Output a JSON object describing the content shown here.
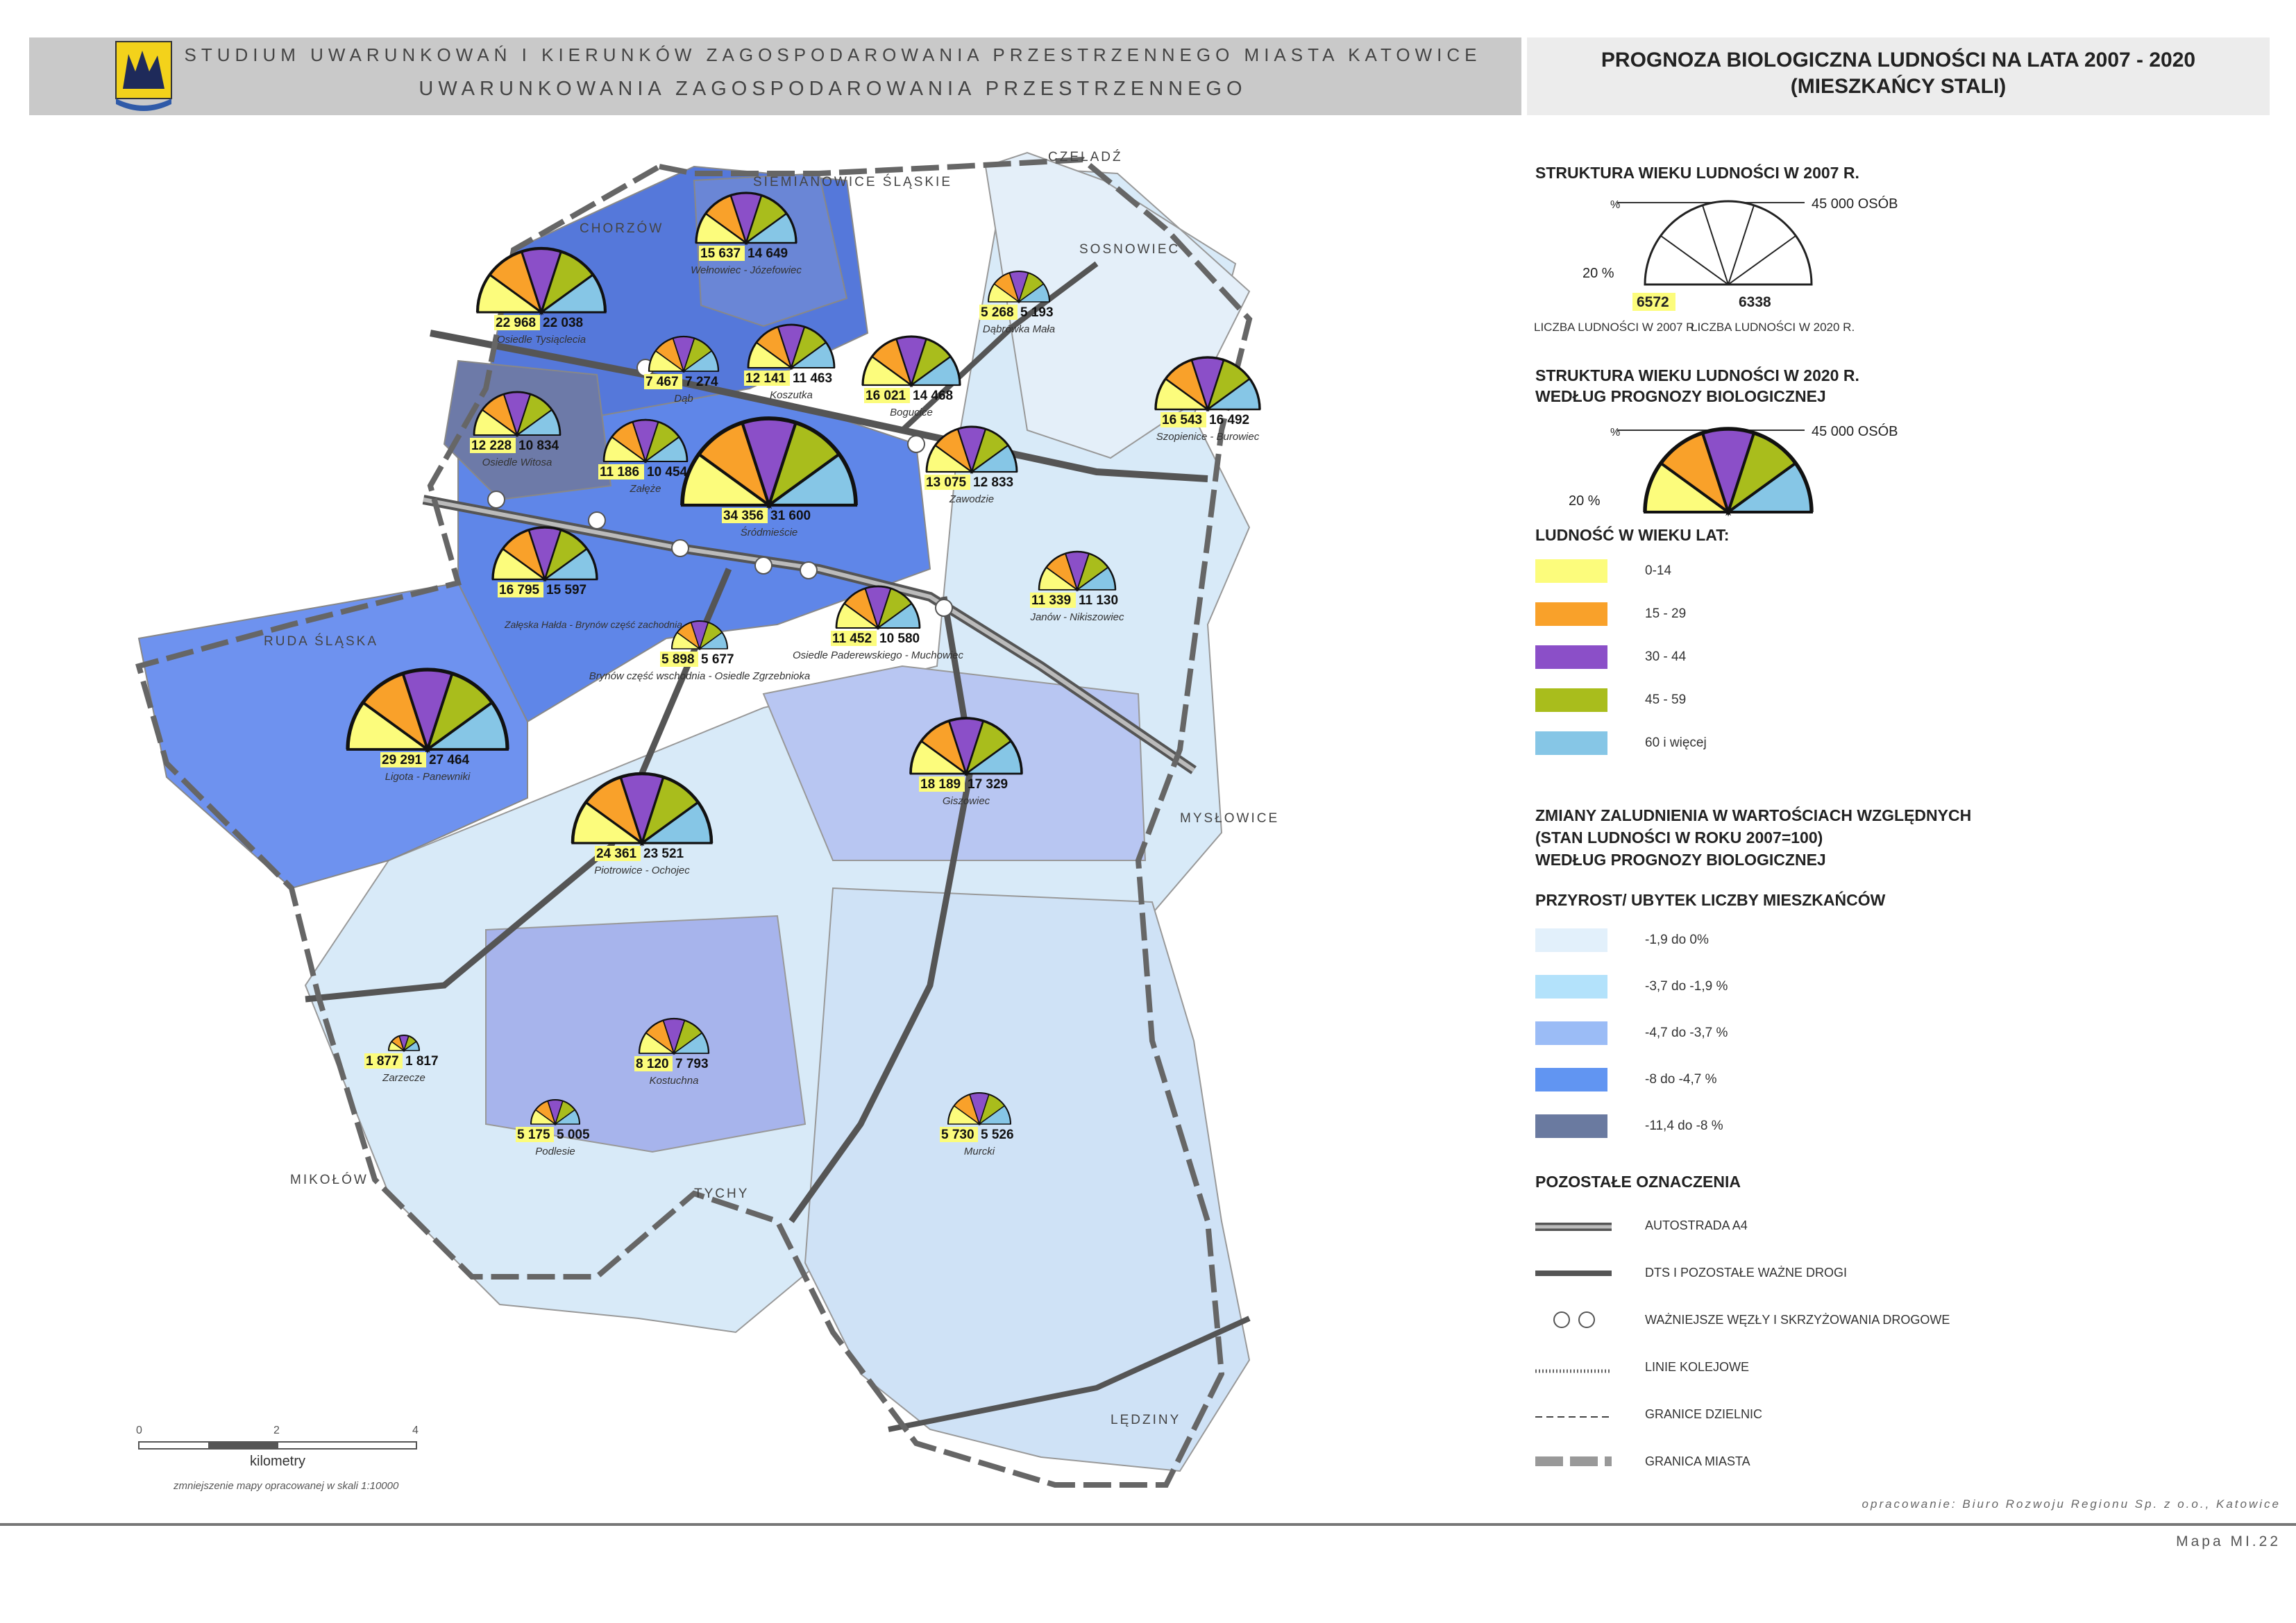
{
  "header": {
    "line1": "STUDIUM UWARUNKOWAŃ I KIERUNKÓW ZAGOSPODAROWANIA PRZESTRZENNEGO MIASTA KATOWICE",
    "line2": "UWARUNKOWANIA ZAGOSPODAROWANIA PRZESTRZENNEGO",
    "title1": "PROGNOZA BIOLOGICZNA LUDNOŚCI NA LATA 2007 - 2020",
    "title2": "(MIESZKAŃCY STALI)"
  },
  "neighbors": [
    "CHORZÓW",
    "SIEMIANOWICE ŚLĄSKIE",
    "CZELADŹ",
    "SOSNOWIEC",
    "RUDA ŚLĄSKA",
    "MYSŁOWICE",
    "MIKOŁÓW",
    "TYCHY",
    "LĘDZINY"
  ],
  "districts": [
    {
      "name": "Osiedle Tysiąclecia",
      "pop2007": "22 968",
      "pop2020": "22 038"
    },
    {
      "name": "Wełnowiec - Józefowiec",
      "pop2007": "15 637",
      "pop2020": "14 649"
    },
    {
      "name": "Dąbrówka Mała",
      "pop2007": "5 268",
      "pop2020": "5 193"
    },
    {
      "name": "Dąb",
      "pop2007": "7 467",
      "pop2020": "7 274"
    },
    {
      "name": "Koszutka",
      "pop2007": "12 141",
      "pop2020": "11 463"
    },
    {
      "name": "Bogucice",
      "pop2007": "16 021",
      "pop2020": "14 468"
    },
    {
      "name": "Szopienice - Burowiec",
      "pop2007": "16 543",
      "pop2020": "16 492"
    },
    {
      "name": "Osiedle Witosa",
      "pop2007": "12 228",
      "pop2020": "10 834"
    },
    {
      "name": "Załęże",
      "pop2007": "11 186",
      "pop2020": "10 454"
    },
    {
      "name": "Śródmieście",
      "pop2007": "34 356",
      "pop2020": "31 600"
    },
    {
      "name": "Zawodzie",
      "pop2007": "13 075",
      "pop2020": "12 833"
    },
    {
      "name": "",
      "pop2007": "16 795",
      "pop2020": "15 597"
    },
    {
      "name": "Janów - Nikiszowiec",
      "pop2007": "11 339",
      "pop2020": "11 130"
    },
    {
      "name": "Brynów część wschodnia - Osiedle Zgrzebnioka",
      "pop2007": "5 898",
      "pop2020": "5 677"
    },
    {
      "name": "Osiedle Paderewskiego - Muchowiec",
      "pop2007": "11 452",
      "pop2020": "10 580"
    },
    {
      "name": "Ligota - Panewniki",
      "pop2007": "29 291",
      "pop2020": "27 464"
    },
    {
      "name": "Giszowiec",
      "pop2007": "18 189",
      "pop2020": "17 329"
    },
    {
      "name": "Piotrowice - Ochojec",
      "pop2007": "24 361",
      "pop2020": "23 521"
    },
    {
      "name": "Zarzecze",
      "pop2007": "1 877",
      "pop2020": "1 817"
    },
    {
      "name": "Kostuchna",
      "pop2007": "8 120",
      "pop2020": "7 793"
    },
    {
      "name": "Podlesie",
      "pop2007": "5 175",
      "pop2020": "5 005"
    },
    {
      "name": "Murcki",
      "pop2007": "5 730",
      "pop2020": "5 526"
    }
  ],
  "district_extra_labels": [
    "Załęska Hałda - Brynów część zachodnia"
  ],
  "legend": {
    "age2007_title": "STRUKTURA WIEKU LUDNOŚCI W 2007 R.",
    "max_label": "45 000 OSÓB",
    "pct_label": "20 %",
    "zero_label": "%",
    "example_2007": "6572",
    "example_2020": "6338",
    "caption_2007": "LICZBA LUDNOŚCI W 2007 R.",
    "caption_2020": "LICZBA LUDNOŚCI W 2020 R.",
    "age2020_title_1": "STRUKTURA WIEKU LUDNOŚCI W 2020 R.",
    "age2020_title_2": "WEDŁUG PROGNOZY BIOLOGICZNEJ",
    "age_groups_title": "LUDNOŚĆ W WIEKU LAT:",
    "age_groups": [
      {
        "label": "0-14",
        "color": "#fcfc7c"
      },
      {
        "label": "15 - 29",
        "color": "#f9a12a"
      },
      {
        "label": "30 - 44",
        "color": "#8b4fc8"
      },
      {
        "label": "45 - 59",
        "color": "#a9bd1c"
      },
      {
        "label": "60 i więcej",
        "color": "#86c6e6"
      }
    ],
    "change_title_1": "ZMIANY ZALUDNIENIA W WARTOŚCIACH WZGLĘDNYCH",
    "change_title_2": "(STAN LUDNOŚCI W ROKU 2007=100)",
    "change_title_3": "WEDŁUG PROGNOZY BIOLOGICZNEJ",
    "growth_title": "PRZYROST/ UBYTEK LICZBY MIESZKAŃCÓW",
    "change_classes": [
      {
        "label": "-1,9 do 0%",
        "color": "#e2f0fb"
      },
      {
        "label": "-3,7 do -1,9 %",
        "color": "#b3e2fb"
      },
      {
        "label": "-4,7 do -3,7 %",
        "color": "#9bbcf6"
      },
      {
        "label": "-8 do -4,7 %",
        "color": "#6195f2"
      },
      {
        "label": "-11,4 do -8 %",
        "color": "#6a7aa0"
      }
    ],
    "other_title": "POZOSTAŁE OZNACZENIA",
    "other_items": [
      "AUTOSTRADA A4",
      "DTS I POZOSTAŁE WAŻNE DROGI",
      "WAŻNIEJSZE WĘZŁY I SKRZYŻOWANIA DROGOWE",
      "LINIE KOLEJOWE",
      "GRANICE DZIELNIC",
      "GRANICA MIASTA"
    ]
  },
  "scale": {
    "ticks": [
      "0",
      "2",
      "4"
    ],
    "unit": "kilometry",
    "note": "zmniejszenie mapy opracowanej w skali 1:10000"
  },
  "footer": {
    "credit": "opracowanie: Biuro Rozwoju Regionu Sp. z o.o., Katowice",
    "map_id": "Mapa MI.22"
  }
}
